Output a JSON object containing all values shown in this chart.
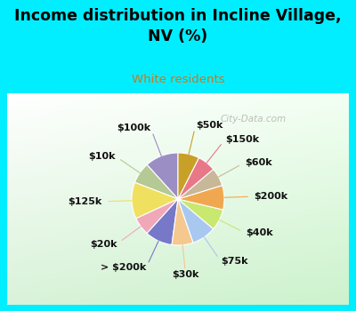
{
  "title": "Income distribution in Incline Village,\nNV (%)",
  "subtitle": "White residents",
  "title_color": "#000000",
  "subtitle_color": "#c87820",
  "bg_cyan": "#00eeff",
  "bg_chart_top": "#ffffff",
  "bg_chart_bottom": "#c8e8c8",
  "labels": [
    "$100k",
    "$10k",
    "$125k",
    "$20k",
    "> $200k",
    "$30k",
    "$75k",
    "$40k",
    "$200k",
    "$60k",
    "$150k",
    "$50k"
  ],
  "values": [
    11,
    7,
    12,
    6,
    9,
    7,
    8,
    7,
    8,
    6,
    6,
    7
  ],
  "colors": [
    "#9b8ec4",
    "#b5c994",
    "#f0e060",
    "#f0a8b8",
    "#7878c8",
    "#f5c890",
    "#a8c8f0",
    "#c8e870",
    "#f0a850",
    "#c8b898",
    "#e87888",
    "#c8a028"
  ],
  "wedge_linewidth": 0.8,
  "wedge_linecolor": "#ffffff",
  "label_fontsize": 8,
  "label_color": "#111111",
  "watermark": "City-Data.com",
  "watermark_color": "#aaaaaa"
}
